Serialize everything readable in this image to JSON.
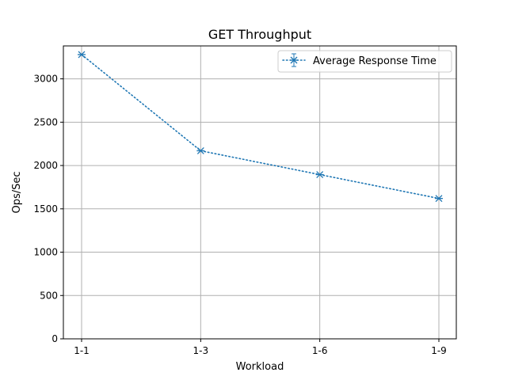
{
  "chart_data": {
    "type": "line",
    "title": "GET Throughput",
    "xlabel": "Workload",
    "ylabel": "Ops/Sec",
    "categories": [
      "1-1",
      "1-3",
      "1-6",
      "1-9"
    ],
    "series": [
      {
        "name": "Average Response Time",
        "values": [
          3280,
          2170,
          1895,
          1620
        ],
        "color": "#1f77b4",
        "line_style": "dotted",
        "marker": "x-cross",
        "error_bars": true
      }
    ],
    "ylim": [
      0,
      3380
    ],
    "yticks": [
      0,
      500,
      1000,
      1500,
      2000,
      2500,
      3000
    ],
    "grid": true,
    "legend_position": "top-right"
  }
}
